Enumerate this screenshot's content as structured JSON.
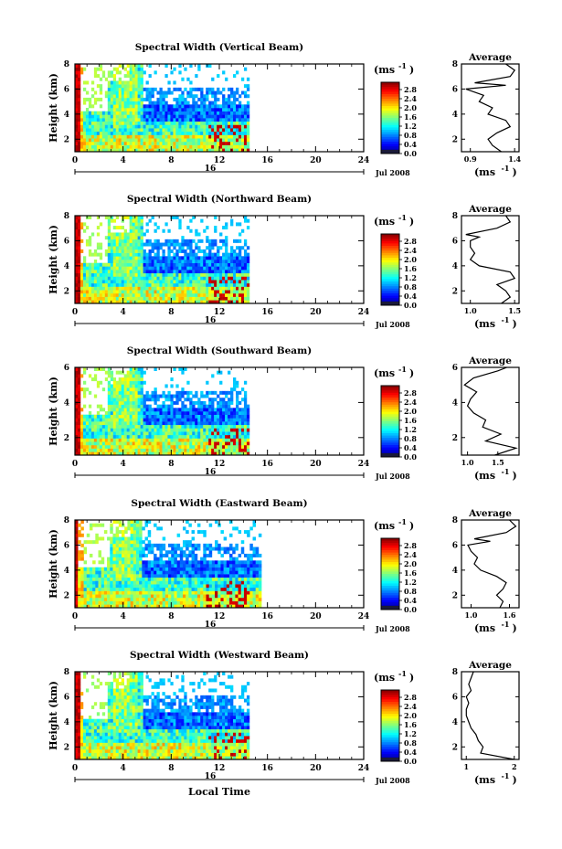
{
  "figure": {
    "xlabel": "Local Time",
    "ylabel": "Height (km)",
    "date_label": "Jul 2008",
    "day_label": "16",
    "unit_label": "(ms",
    "unit_sup": "-1",
    "average_title": "Average"
  },
  "chart_data": [
    {
      "type": "heatmap",
      "title": "Spectral Width (Vertical Beam)",
      "xlabel": "",
      "ylabel": "Height (km)",
      "xlim": [
        0,
        24
      ],
      "ylim": [
        1,
        8
      ],
      "x_ticks": [
        0,
        4,
        8,
        12,
        16,
        20,
        24
      ],
      "y_ticks": [
        2,
        4,
        6,
        8
      ],
      "data_extent_hours": [
        0,
        14.5
      ],
      "colorbar": {
        "label": "(ms-1)",
        "range": [
          0,
          3
        ],
        "ticks": [
          "2.8",
          "2.4",
          "2.0",
          "1.6",
          "1.2",
          "0.8",
          "0.4",
          "0.0"
        ]
      },
      "average": {
        "xlim": [
          0.8,
          1.45
        ],
        "x_ticks": [
          "0.9",
          "1.4"
        ],
        "y_ticks": [
          2,
          4,
          6,
          8
        ],
        "heights": [
          1.0,
          1.5,
          2.0,
          2.5,
          3.0,
          3.5,
          4.0,
          4.5,
          5.0,
          5.5,
          6.0,
          6.3,
          6.5,
          7.0,
          7.5,
          8.0
        ],
        "values": [
          1.25,
          1.15,
          1.1,
          1.2,
          1.35,
          1.3,
          1.1,
          1.15,
          1.0,
          1.05,
          0.85,
          1.3,
          0.95,
          1.35,
          1.4,
          1.3
        ]
      }
    },
    {
      "type": "heatmap",
      "title": "Spectral Width (Northward Beam)",
      "xlabel": "",
      "ylabel": "Height (km)",
      "xlim": [
        0,
        24
      ],
      "ylim": [
        1,
        8
      ],
      "x_ticks": [
        0,
        4,
        8,
        12,
        16,
        20,
        24
      ],
      "y_ticks": [
        2,
        4,
        6,
        8
      ],
      "data_extent_hours": [
        0,
        14.5
      ],
      "colorbar": {
        "label": "(ms-1)",
        "range": [
          0,
          3
        ],
        "ticks": [
          "2.8",
          "2.4",
          "2.0",
          "1.6",
          "1.2",
          "0.8",
          "0.4",
          "0.0"
        ]
      },
      "average": {
        "xlim": [
          0.9,
          1.55
        ],
        "x_ticks": [
          "1.0",
          "1.5"
        ],
        "y_ticks": [
          2,
          4,
          6,
          8
        ],
        "heights": [
          1.0,
          1.5,
          2.0,
          2.5,
          3.0,
          3.5,
          4.0,
          4.5,
          5.0,
          5.5,
          6.0,
          6.3,
          6.5,
          7.0,
          7.5,
          8.0
        ],
        "values": [
          1.35,
          1.45,
          1.4,
          1.3,
          1.5,
          1.45,
          1.1,
          1.0,
          1.05,
          1.0,
          1.0,
          1.1,
          0.95,
          1.3,
          1.45,
          1.4
        ]
      }
    },
    {
      "type": "heatmap",
      "title": "Spectral Width (Southward Beam)",
      "xlabel": "",
      "ylabel": "Height (km)",
      "xlim": [
        0,
        24
      ],
      "ylim": [
        1,
        6
      ],
      "x_ticks": [
        0,
        4,
        8,
        12,
        16,
        20,
        24
      ],
      "y_ticks": [
        2,
        4,
        6
      ],
      "data_extent_hours": [
        0,
        14.5
      ],
      "colorbar": {
        "label": "(ms-1)",
        "range": [
          0,
          3
        ],
        "ticks": [
          "2.8",
          "2.4",
          "2.0",
          "1.6",
          "1.2",
          "0.8",
          "0.4",
          "0.0"
        ]
      },
      "average": {
        "xlim": [
          0.9,
          1.85
        ],
        "x_ticks": [
          "1.0",
          "1.5"
        ],
        "y_ticks": [
          2,
          4,
          6
        ],
        "heights": [
          1.0,
          1.4,
          1.8,
          2.2,
          2.6,
          3.0,
          3.4,
          3.8,
          4.2,
          4.6,
          5.0,
          5.4,
          5.8,
          6.0
        ],
        "values": [
          1.45,
          1.8,
          1.3,
          1.55,
          1.25,
          1.3,
          1.1,
          1.0,
          1.05,
          1.15,
          0.95,
          1.1,
          1.5,
          1.65
        ]
      }
    },
    {
      "type": "heatmap",
      "title": "Spectral Width (Eastward Beam)",
      "xlabel": "",
      "ylabel": "Height (km)",
      "xlim": [
        0,
        24
      ],
      "ylim": [
        1,
        8
      ],
      "x_ticks": [
        0,
        4,
        8,
        12,
        16,
        20,
        24
      ],
      "y_ticks": [
        2,
        4,
        6,
        8
      ],
      "data_extent_hours": [
        0,
        15.5
      ],
      "colorbar": {
        "label": "(ms-1)",
        "range": [
          0,
          3
        ],
        "ticks": [
          "2.8",
          "2.4",
          "2.0",
          "1.6",
          "1.2",
          "0.8",
          "0.4",
          "0.0"
        ]
      },
      "average": {
        "xlim": [
          0.85,
          1.75
        ],
        "x_ticks": [
          "1.0",
          "1.6"
        ],
        "y_ticks": [
          2,
          4,
          6,
          8
        ],
        "heights": [
          1.0,
          1.5,
          2.0,
          2.5,
          3.0,
          3.5,
          4.0,
          4.5,
          5.0,
          5.5,
          6.0,
          6.3,
          6.5,
          7.0,
          7.5,
          8.0
        ],
        "values": [
          1.45,
          1.5,
          1.4,
          1.5,
          1.55,
          1.4,
          1.15,
          1.05,
          1.1,
          1.0,
          0.95,
          1.3,
          1.05,
          1.55,
          1.7,
          1.6
        ]
      }
    },
    {
      "type": "heatmap",
      "title": "Spectral Width (Westward Beam)",
      "xlabel": "Local Time",
      "ylabel": "Height (km)",
      "xlim": [
        0,
        24
      ],
      "ylim": [
        1,
        8
      ],
      "x_ticks": [
        0,
        4,
        8,
        12,
        16,
        20,
        24
      ],
      "y_ticks": [
        2,
        4,
        6,
        8
      ],
      "data_extent_hours": [
        0,
        14.5
      ],
      "colorbar": {
        "label": "(ms-1)",
        "range": [
          0,
          3
        ],
        "ticks": [
          "2.8",
          "2.4",
          "2.0",
          "1.6",
          "1.2",
          "0.8",
          "0.4",
          "0.0"
        ]
      },
      "average": {
        "xlim": [
          0.9,
          2.1
        ],
        "x_ticks": [
          "1",
          "2"
        ],
        "y_ticks": [
          2,
          4,
          6,
          8
        ],
        "heights": [
          1.0,
          1.5,
          2.0,
          2.5,
          3.0,
          3.5,
          4.0,
          4.5,
          5.0,
          5.5,
          6.0,
          6.5,
          7.0,
          7.5,
          8.0
        ],
        "values": [
          2.0,
          1.3,
          1.35,
          1.25,
          1.2,
          1.1,
          1.05,
          1.0,
          1.0,
          1.05,
          1.0,
          1.1,
          1.05,
          1.1,
          1.15
        ]
      }
    }
  ]
}
